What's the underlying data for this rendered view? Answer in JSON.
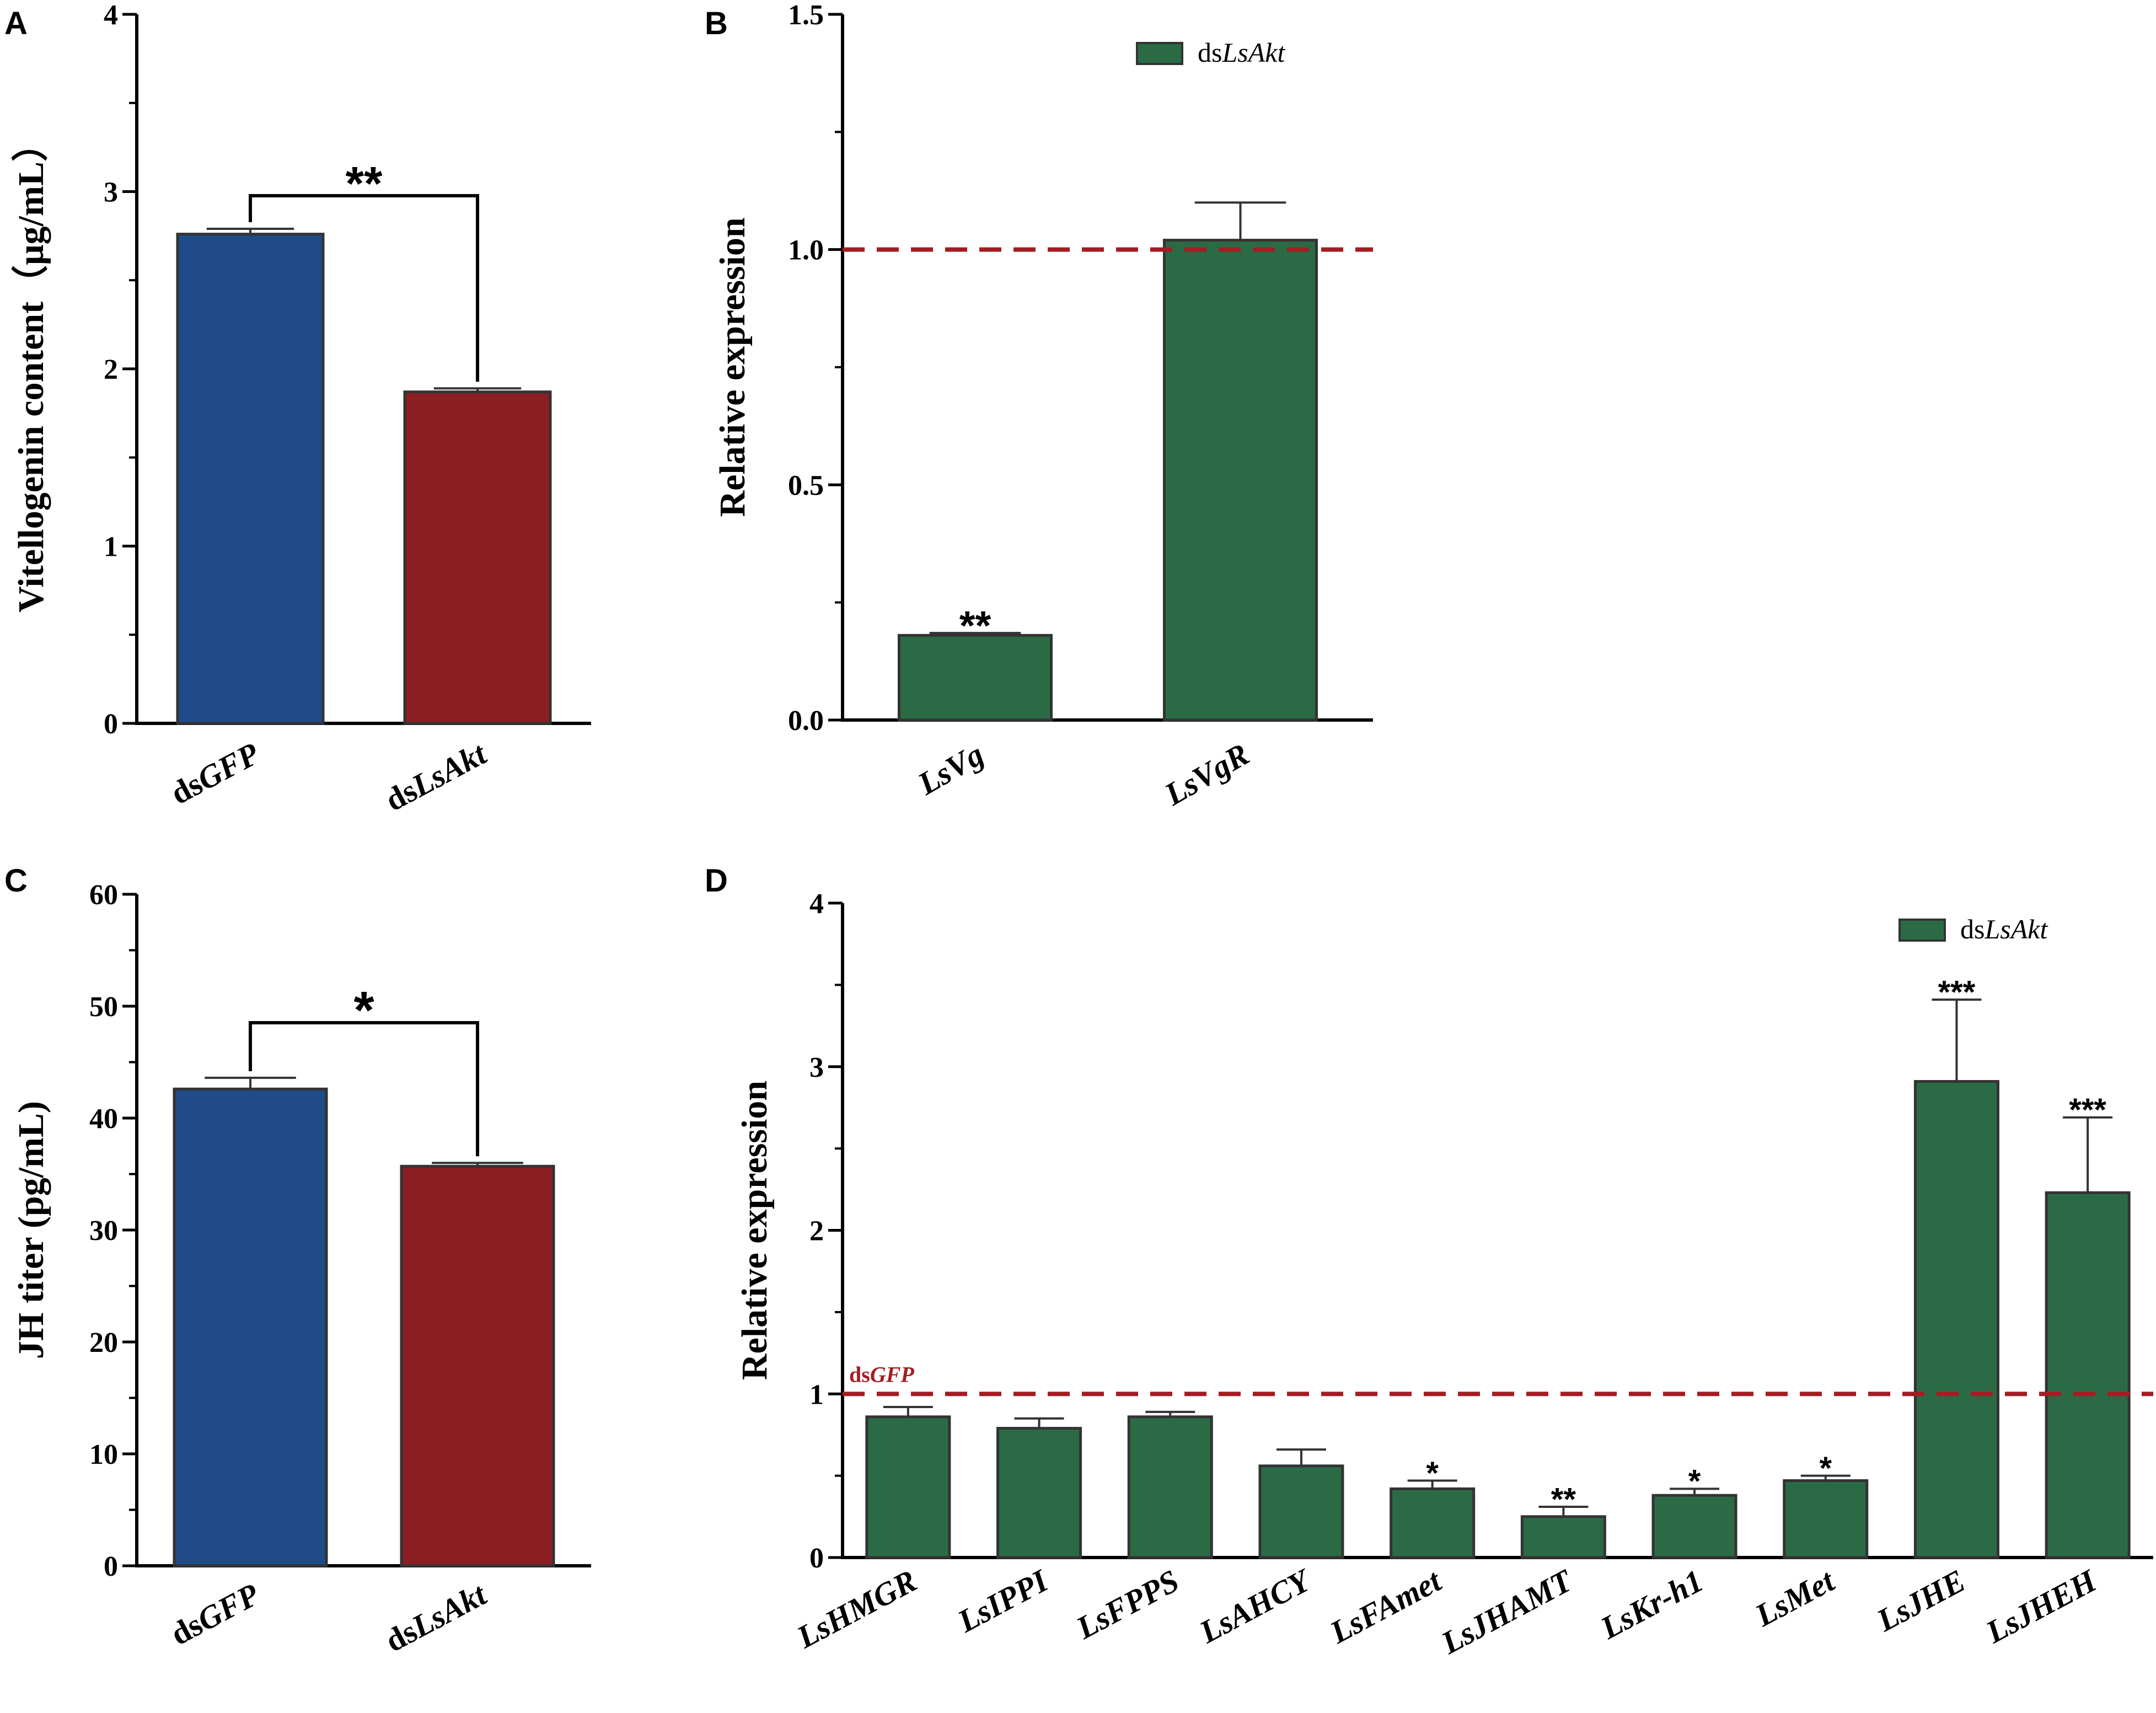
{
  "figure": {
    "bar_colors": {
      "blue": "#1f4b88",
      "red": "#8b1e22",
      "green": "#2a6b45"
    },
    "ref_line_color": "#a31d22"
  },
  "chart_data": [
    {
      "panel": "A",
      "type": "bar",
      "categories": [
        {
          "prefix": "ds",
          "italic": "GFP"
        },
        {
          "prefix": "ds",
          "italic": "LsAkt"
        }
      ],
      "values": [
        2.76,
        1.87
      ],
      "errors": [
        0.03,
        0.02
      ],
      "colors": [
        "#1f4b88",
        "#8b1e22"
      ],
      "ylabel": "Vitellogenin content（μg/mL）",
      "ylim": [
        0,
        4
      ],
      "yticks": [
        0,
        1,
        2,
        3,
        4
      ],
      "tick_decimals": 0,
      "bracket": {
        "from": 0,
        "to": 1,
        "label": "**"
      }
    },
    {
      "panel": "B",
      "type": "bar",
      "categories": [
        {
          "prefix": "",
          "italic": "LsVg"
        },
        {
          "prefix": "",
          "italic": "LsVgR"
        }
      ],
      "values": [
        0.18,
        1.02
      ],
      "errors": [
        0.005,
        0.08
      ],
      "colors": [
        "#2a6b45",
        "#2a6b45"
      ],
      "ylabel": "Relative expression",
      "ylim": [
        0,
        1.5
      ],
      "yticks": [
        0.0,
        0.5,
        1.0,
        1.5
      ],
      "tick_decimals": 1,
      "significance": [
        "**",
        ""
      ],
      "reference_line": {
        "value": 1.0,
        "label": ""
      },
      "legend": {
        "prefix": "ds",
        "italic": "LsAkt",
        "placement": "top-center"
      }
    },
    {
      "panel": "C",
      "type": "bar",
      "categories": [
        {
          "prefix": "ds",
          "italic": "GFP"
        },
        {
          "prefix": "ds",
          "italic": "LsAkt"
        }
      ],
      "values": [
        42.6,
        35.7
      ],
      "errors": [
        1.0,
        0.3
      ],
      "colors": [
        "#1f4b88",
        "#8b1e22"
      ],
      "ylabel": "JH titer (pg/mL)",
      "ylim": [
        0,
        60
      ],
      "yticks": [
        0,
        10,
        20,
        30,
        40,
        50,
        60
      ],
      "tick_decimals": 0,
      "bracket": {
        "from": 0,
        "to": 1,
        "label": "*"
      }
    },
    {
      "panel": "D",
      "type": "bar",
      "categories": [
        {
          "prefix": "",
          "italic": "LsHMGR"
        },
        {
          "prefix": "",
          "italic": "LsIPPI"
        },
        {
          "prefix": "",
          "italic": "LsFPPS"
        },
        {
          "prefix": "",
          "italic": "LsAHCY"
        },
        {
          "prefix": "",
          "italic": "LsFAmet"
        },
        {
          "prefix": "",
          "italic": "LsJHAMT"
        },
        {
          "prefix": "",
          "italic": "LsKr-h1"
        },
        {
          "prefix": "",
          "italic": "LsMet"
        },
        {
          "prefix": "",
          "italic": "LsJHE"
        },
        {
          "prefix": "",
          "italic": "LsJHEH"
        }
      ],
      "values": [
        0.86,
        0.79,
        0.86,
        0.56,
        0.42,
        0.25,
        0.38,
        0.47,
        2.91,
        2.23
      ],
      "errors": [
        0.06,
        0.06,
        0.03,
        0.1,
        0.05,
        0.06,
        0.04,
        0.03,
        0.5,
        0.46
      ],
      "colors": [
        "#2a6b45",
        "#2a6b45",
        "#2a6b45",
        "#2a6b45",
        "#2a6b45",
        "#2a6b45",
        "#2a6b45",
        "#2a6b45",
        "#2a6b45",
        "#2a6b45"
      ],
      "ylabel": "Relative expression",
      "ylim": [
        0,
        4
      ],
      "yticks": [
        0,
        1,
        2,
        3,
        4
      ],
      "tick_decimals": 0,
      "significance": [
        "",
        "",
        "",
        "",
        "*",
        "**",
        "*",
        "*",
        "***",
        "***"
      ],
      "reference_line": {
        "value": 1.0,
        "label_prefix": "ds",
        "label_italic": "GFP"
      },
      "legend": {
        "prefix": "ds",
        "italic": "LsAkt",
        "placement": "top-right"
      }
    }
  ]
}
